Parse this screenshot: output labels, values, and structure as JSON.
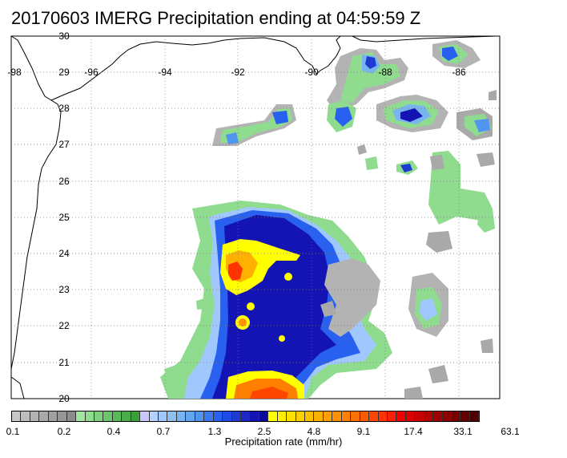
{
  "title": "20170603 IMERG Precipitation ending at 04:59:59 Z",
  "map": {
    "latitude_labels": [
      "30",
      "29",
      "28",
      "27",
      "26",
      "25",
      "24",
      "23",
      "22",
      "21",
      "20"
    ],
    "longitude_labels": [
      "-98",
      "-96",
      "-94",
      "-92",
      "-90",
      "-88",
      "-86"
    ],
    "gridlines": true,
    "region": "Gulf of Mexico"
  },
  "colorbar": {
    "title": "Precipitation rate (mm/hr)",
    "tick_labels": [
      "0.1",
      "0.2",
      "0.4",
      "0.7",
      "1.3",
      "2.5",
      "4.8",
      "9.1",
      "17.4",
      "33.1",
      "63.1"
    ],
    "colors": [
      "#c8c8c8",
      "#bdbdbd",
      "#b3b3b3",
      "#a9a9a9",
      "#a0a0a0",
      "#969696",
      "#8c8c8c",
      "#a0e6a0",
      "#8fdc8f",
      "#7ed07e",
      "#6cc46c",
      "#5ab85a",
      "#4aac4a",
      "#3aa03a",
      "#c8c8ff",
      "#b4d2ff",
      "#a0c8ff",
      "#8cbef0",
      "#78b4f0",
      "#64a5f0",
      "#5096f0",
      "#3c78f0",
      "#2860f0",
      "#1e4be6",
      "#1e3cd2",
      "#1e28c8",
      "#1414b4",
      "#0a0aa0",
      "#ffff00",
      "#fff000",
      "#ffe000",
      "#ffd000",
      "#ffc000",
      "#ffb000",
      "#ffa000",
      "#ff9000",
      "#ff8000",
      "#ff6e00",
      "#ff5a00",
      "#ff4600",
      "#ff3200",
      "#ff1e00",
      "#f00000",
      "#dc0000",
      "#c80000",
      "#b40000",
      "#a00000",
      "#8c0000",
      "#780000",
      "#640000",
      "#500000"
    ],
    "level_names": [
      "gray",
      "green",
      "blue-light",
      "blue-dark",
      "yellow-orange",
      "red",
      "dark-red"
    ]
  }
}
